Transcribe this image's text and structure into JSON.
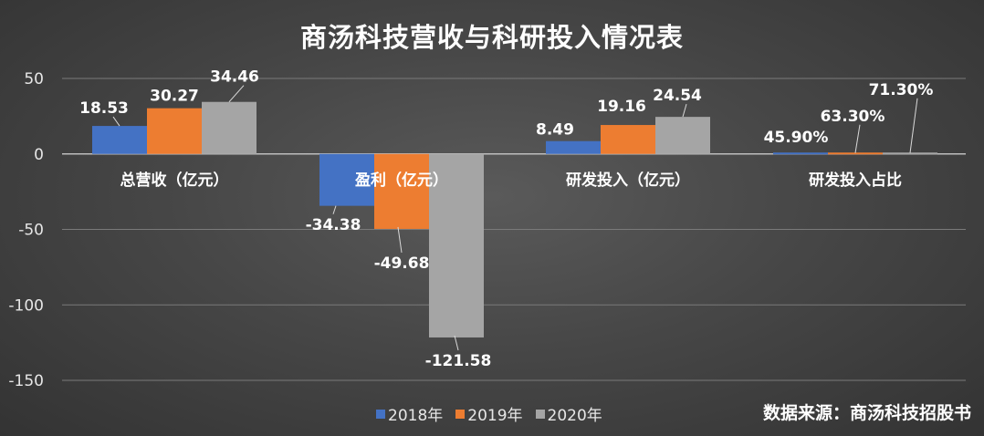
{
  "chart_data": {
    "type": "bar",
    "title": "商汤科技营收与科研投入情况表",
    "categories": [
      "总营收（亿元）",
      "盈利（亿元）",
      "研发投入（亿元）",
      "研发投入占比"
    ],
    "series": [
      {
        "name": "2018年",
        "color": "#4472C4",
        "values": [
          18.53,
          -34.38,
          8.49,
          45.9
        ],
        "labels": [
          "18.53",
          "-34.38",
          "8.49",
          "45.90%"
        ]
      },
      {
        "name": "2019年",
        "color": "#ED7D31",
        "values": [
          30.27,
          -49.68,
          19.16,
          63.3
        ],
        "labels": [
          "30.27",
          "-49.68",
          "19.16",
          "63.30%"
        ]
      },
      {
        "name": "2020年",
        "color": "#A5A5A5",
        "values": [
          34.46,
          -121.58,
          24.54,
          71.3
        ],
        "labels": [
          "34.46",
          "-121.58",
          "24.54",
          "71.30%"
        ]
      }
    ],
    "ylim": [
      -150,
      50
    ],
    "yticks": [
      "50",
      "0",
      "-50",
      "-100",
      "-150"
    ],
    "ytick_values": [
      50,
      0,
      -50,
      -100,
      -150
    ],
    "grid": true,
    "legend_position": "bottom-center"
  },
  "source_note": "数据来源：商汤科技招股书"
}
